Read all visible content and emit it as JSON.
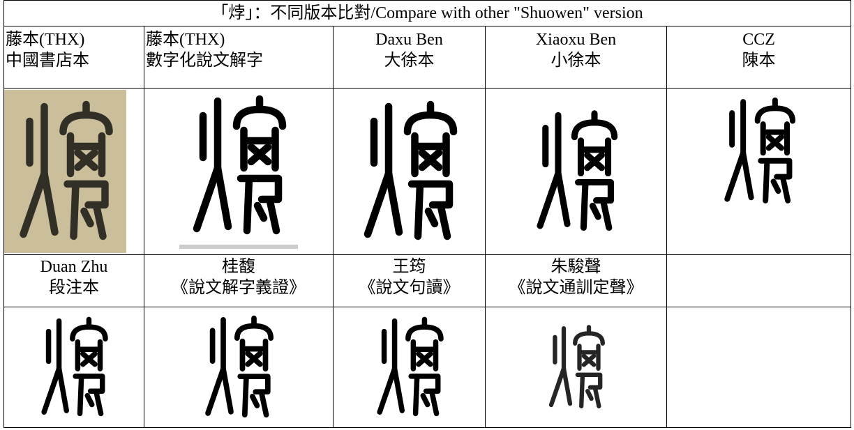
{
  "title": "「㶿」：不同版本比對/Compare with other \"Shuowen\" version",
  "rows": [
    {
      "cells": [
        {
          "lines": [
            "藤本(THX)",
            "中國書店本"
          ]
        },
        {
          "lines": [
            "藤本(THX)",
            "數字化說文解字"
          ]
        },
        {
          "lines": [
            "Daxu Ben",
            "大徐本"
          ]
        },
        {
          "lines": [
            "Xiaoxu Ben",
            "小徐本"
          ]
        },
        {
          "lines": [
            "CCZ",
            "陳本"
          ]
        }
      ]
    },
    {
      "cells": [
        {
          "lines": [
            "Duan Zhu",
            "段注本"
          ]
        },
        {
          "lines": [
            "桂馥",
            "《說文解字義證》"
          ]
        },
        {
          "lines": [
            "王筠",
            "《說文句讀》"
          ]
        },
        {
          "lines": [
            "朱駿聲",
            "《說文通訓定聲》"
          ]
        }
      ]
    }
  ]
}
